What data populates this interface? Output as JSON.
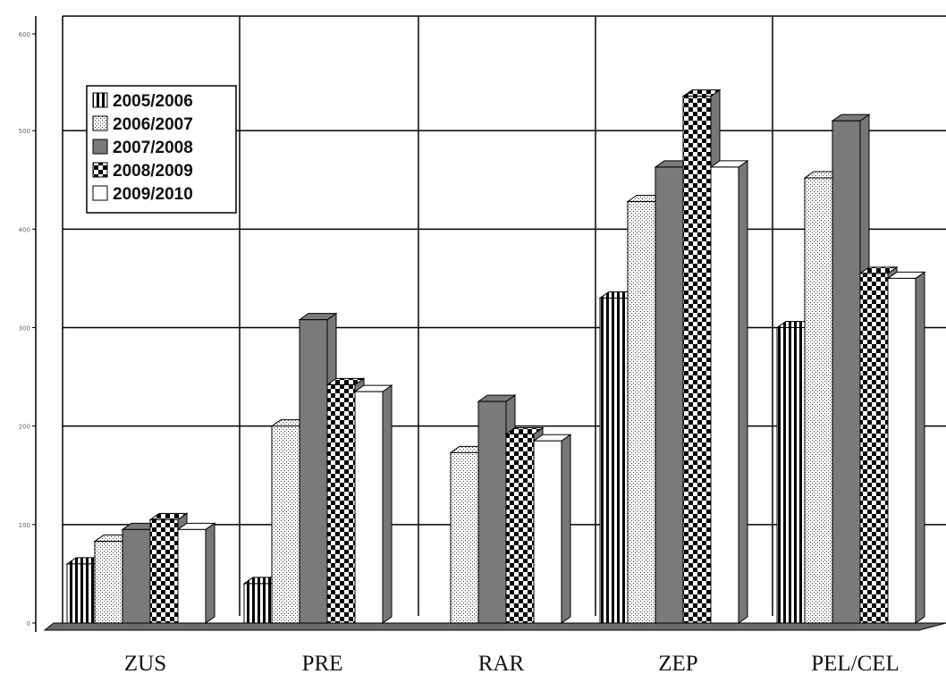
{
  "chart_data": {
    "type": "bar",
    "categories": [
      "ZUS",
      "PRE",
      "RAR",
      "ZEP",
      "PEL/CEL"
    ],
    "series": [
      {
        "name": "2005/2006",
        "values": [
          60,
          40,
          0,
          330,
          300
        ]
      },
      {
        "name": "2006/2007",
        "values": [
          83,
          200,
          173,
          428,
          452
        ]
      },
      {
        "name": "2007/2008",
        "values": [
          95,
          308,
          225,
          463,
          510
        ]
      },
      {
        "name": "2008/2009",
        "values": [
          105,
          242,
          192,
          535,
          355
        ]
      },
      {
        "name": "2009/2010",
        "values": [
          95,
          235,
          185,
          463,
          350
        ]
      }
    ],
    "ylim": [
      0,
      600
    ],
    "yticks": [
      "0",
      "100",
      "200",
      "300",
      "400",
      "500",
      "600"
    ],
    "legend_position": "top-left",
    "grid": true
  },
  "colors": {
    "bar_edge": "#000000",
    "bar_side": "#777777",
    "solid_fill": "#7a7a7a",
    "grid": "#000000"
  }
}
